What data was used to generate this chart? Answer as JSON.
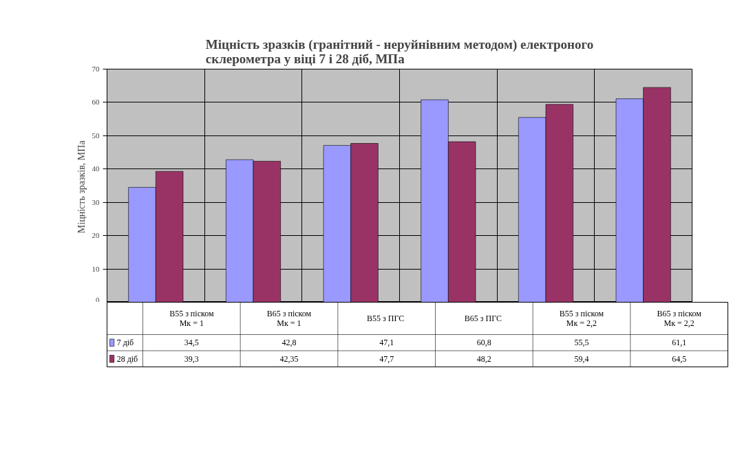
{
  "chart_data": {
    "type": "bar",
    "title": "Міцність зразків (гранітний - неруйнівним методом) електроного\nсклерометра у віці  7 і 28 діб, МПа",
    "ylabel": "Міцність  зразків, МПа",
    "categories": [
      "B55 з піском\nМк = 1",
      "B65 з піском\nМк = 1",
      "B55  з ПГС",
      "B65  з ПГС",
      "B55 з піском\nМк = 2,2",
      "B65 з піском\nМк = 2,2"
    ],
    "series": [
      {
        "name": "7 діб",
        "color": "#9999ff",
        "values": [
          34.5,
          42.8,
          47.1,
          60.8,
          55.5,
          61.1
        ],
        "value_labels": [
          "34,5",
          "42,8",
          "47,1",
          "60,8",
          "55,5",
          "61,1"
        ]
      },
      {
        "name": "28 діб",
        "color": "#993366",
        "values": [
          39.3,
          42.35,
          47.7,
          48.2,
          59.4,
          64.5
        ],
        "value_labels": [
          "39,3",
          "42,35",
          "47,7",
          "48,2",
          "59,4",
          "64,5"
        ]
      }
    ],
    "ylim": [
      0,
      70
    ],
    "yticks": [
      0,
      10,
      20,
      30,
      40,
      50,
      60,
      70
    ],
    "grid": true,
    "legend": "bottom"
  }
}
